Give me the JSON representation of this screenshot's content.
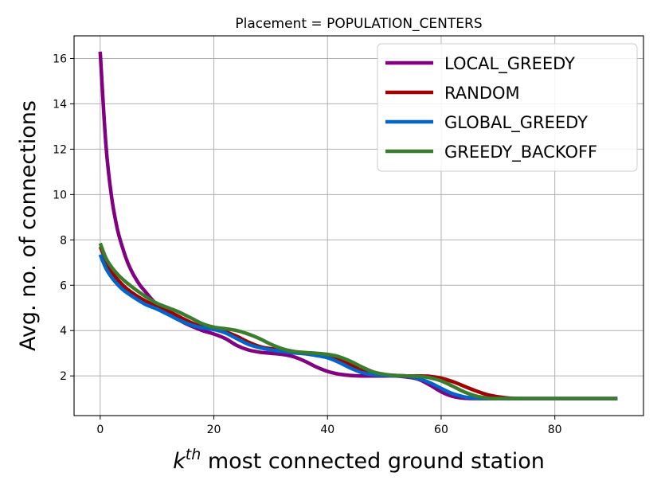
{
  "chart_data": {
    "type": "line",
    "title": "Placement = POPULATION_CENTERS",
    "xlabel": {
      "base": "k",
      "sup": "th",
      "rest": " most connected ground station"
    },
    "ylabel": "Avg. no. of connections",
    "xlim": [
      -4.6,
      95.6
    ],
    "ylim": [
      0.25,
      17.0
    ],
    "xticks": [
      0,
      20,
      40,
      60,
      80
    ],
    "yticks": [
      2,
      4,
      6,
      8,
      10,
      12,
      14,
      16
    ],
    "grid": true,
    "legend_position": "top-right",
    "series": [
      {
        "name": "LOCAL_GREEDY",
        "color": "#800080",
        "points": [
          [
            0,
            16.3
          ],
          [
            1,
            12.2
          ],
          [
            2,
            9.9
          ],
          [
            3,
            8.5
          ],
          [
            4,
            7.6
          ],
          [
            5,
            6.9
          ],
          [
            6,
            6.4
          ],
          [
            7,
            6.0
          ],
          [
            8,
            5.7
          ],
          [
            9,
            5.4
          ],
          [
            10,
            5.15
          ],
          [
            12,
            4.8
          ],
          [
            14,
            4.45
          ],
          [
            16,
            4.2
          ],
          [
            18,
            4.0
          ],
          [
            20,
            3.85
          ],
          [
            22,
            3.65
          ],
          [
            24,
            3.35
          ],
          [
            26,
            3.15
          ],
          [
            28,
            3.05
          ],
          [
            30,
            3.0
          ],
          [
            32,
            2.95
          ],
          [
            34,
            2.85
          ],
          [
            36,
            2.65
          ],
          [
            38,
            2.4
          ],
          [
            40,
            2.2
          ],
          [
            42,
            2.08
          ],
          [
            44,
            2.02
          ],
          [
            46,
            2.0
          ],
          [
            48,
            2.0
          ],
          [
            50,
            2.0
          ],
          [
            52,
            2.0
          ],
          [
            54,
            1.95
          ],
          [
            56,
            1.85
          ],
          [
            58,
            1.6
          ],
          [
            60,
            1.3
          ],
          [
            62,
            1.1
          ],
          [
            64,
            1.02
          ],
          [
            66,
            1.0
          ],
          [
            70,
            1.0
          ],
          [
            80,
            1.0
          ],
          [
            91,
            1.0
          ]
        ]
      },
      {
        "name": "RANDOM",
        "color": "#a00000",
        "points": [
          [
            0,
            7.7
          ],
          [
            2,
            6.6
          ],
          [
            4,
            6.0
          ],
          [
            6,
            5.6
          ],
          [
            8,
            5.3
          ],
          [
            10,
            5.05
          ],
          [
            12,
            4.85
          ],
          [
            14,
            4.6
          ],
          [
            16,
            4.35
          ],
          [
            18,
            4.15
          ],
          [
            20,
            4.05
          ],
          [
            22,
            3.95
          ],
          [
            24,
            3.75
          ],
          [
            26,
            3.5
          ],
          [
            28,
            3.3
          ],
          [
            30,
            3.2
          ],
          [
            32,
            3.15
          ],
          [
            34,
            3.05
          ],
          [
            36,
            3.0
          ],
          [
            38,
            2.95
          ],
          [
            40,
            2.85
          ],
          [
            42,
            2.7
          ],
          [
            44,
            2.5
          ],
          [
            46,
            2.3
          ],
          [
            48,
            2.12
          ],
          [
            50,
            2.05
          ],
          [
            52,
            2.02
          ],
          [
            54,
            2.0
          ],
          [
            56,
            2.0
          ],
          [
            58,
            1.98
          ],
          [
            60,
            1.9
          ],
          [
            62,
            1.75
          ],
          [
            64,
            1.55
          ],
          [
            66,
            1.35
          ],
          [
            68,
            1.18
          ],
          [
            70,
            1.08
          ],
          [
            72,
            1.02
          ],
          [
            74,
            1.0
          ],
          [
            80,
            1.0
          ],
          [
            91,
            1.0
          ]
        ]
      },
      {
        "name": "GLOBAL_GREEDY",
        "color": "#0064c8",
        "points": [
          [
            0,
            7.35
          ],
          [
            1,
            6.75
          ],
          [
            2,
            6.35
          ],
          [
            3,
            6.05
          ],
          [
            4,
            5.8
          ],
          [
            6,
            5.45
          ],
          [
            8,
            5.15
          ],
          [
            10,
            4.95
          ],
          [
            12,
            4.7
          ],
          [
            14,
            4.45
          ],
          [
            16,
            4.25
          ],
          [
            18,
            4.12
          ],
          [
            20,
            4.05
          ],
          [
            22,
            3.9
          ],
          [
            24,
            3.65
          ],
          [
            26,
            3.4
          ],
          [
            28,
            3.25
          ],
          [
            30,
            3.15
          ],
          [
            32,
            3.08
          ],
          [
            34,
            3.02
          ],
          [
            36,
            2.98
          ],
          [
            38,
            2.9
          ],
          [
            40,
            2.8
          ],
          [
            42,
            2.6
          ],
          [
            44,
            2.35
          ],
          [
            46,
            2.15
          ],
          [
            48,
            2.05
          ],
          [
            50,
            2.02
          ],
          [
            52,
            2.0
          ],
          [
            54,
            1.98
          ],
          [
            56,
            1.88
          ],
          [
            58,
            1.7
          ],
          [
            60,
            1.45
          ],
          [
            62,
            1.22
          ],
          [
            64,
            1.08
          ],
          [
            66,
            1.02
          ],
          [
            68,
            1.0
          ],
          [
            80,
            1.0
          ],
          [
            91,
            1.0
          ]
        ]
      },
      {
        "name": "GREEDY_BACKOFF",
        "color": "#3a7d2e",
        "points": [
          [
            0,
            7.85
          ],
          [
            1,
            7.2
          ],
          [
            2,
            6.8
          ],
          [
            3,
            6.5
          ],
          [
            4,
            6.25
          ],
          [
            6,
            5.85
          ],
          [
            8,
            5.5
          ],
          [
            10,
            5.2
          ],
          [
            12,
            5.0
          ],
          [
            14,
            4.8
          ],
          [
            16,
            4.55
          ],
          [
            18,
            4.3
          ],
          [
            20,
            4.15
          ],
          [
            22,
            4.08
          ],
          [
            24,
            4.0
          ],
          [
            26,
            3.85
          ],
          [
            28,
            3.65
          ],
          [
            30,
            3.4
          ],
          [
            32,
            3.2
          ],
          [
            34,
            3.08
          ],
          [
            36,
            3.03
          ],
          [
            38,
            3.0
          ],
          [
            40,
            2.95
          ],
          [
            42,
            2.85
          ],
          [
            44,
            2.65
          ],
          [
            46,
            2.4
          ],
          [
            48,
            2.18
          ],
          [
            50,
            2.07
          ],
          [
            52,
            2.02
          ],
          [
            54,
            2.0
          ],
          [
            56,
            1.98
          ],
          [
            58,
            1.92
          ],
          [
            60,
            1.78
          ],
          [
            62,
            1.55
          ],
          [
            64,
            1.3
          ],
          [
            66,
            1.12
          ],
          [
            68,
            1.03
          ],
          [
            70,
            1.0
          ],
          [
            80,
            1.0
          ],
          [
            91,
            1.0
          ]
        ]
      }
    ]
  }
}
